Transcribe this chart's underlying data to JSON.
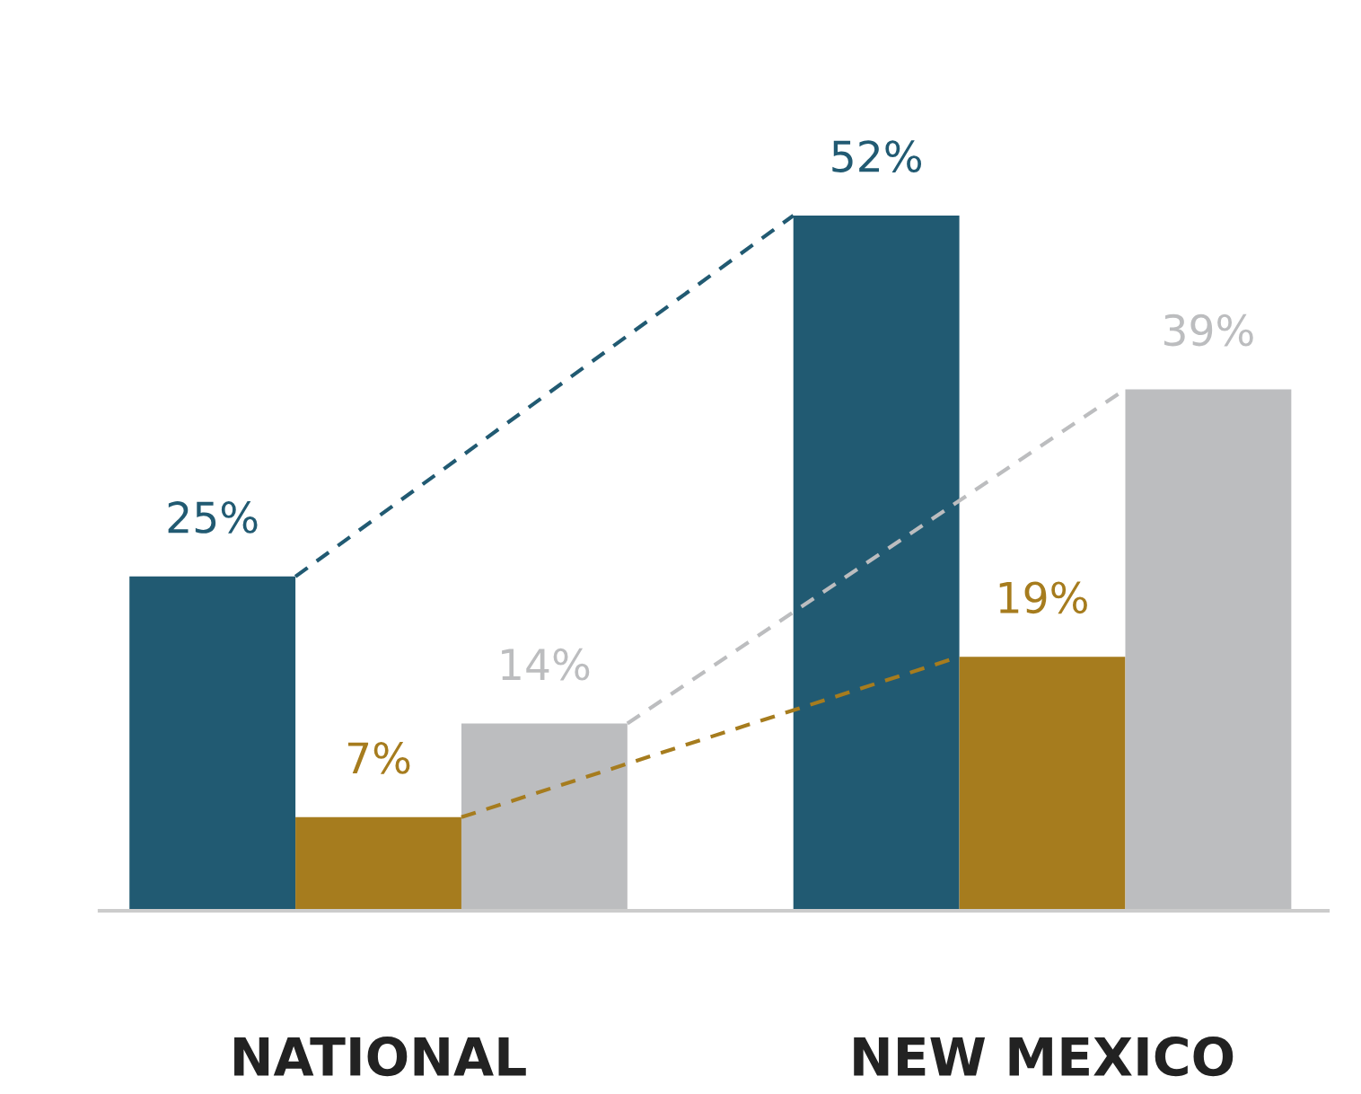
{
  "chart_data": {
    "type": "bar",
    "categories": [
      "NATIONAL",
      "NEW MEXICO"
    ],
    "series": [
      {
        "color": "#215a72",
        "values": [
          25,
          52
        ],
        "value_labels": [
          "25%",
          "52%"
        ],
        "line_style": "dashed"
      },
      {
        "color": "#a67c1e",
        "values": [
          7,
          19
        ],
        "value_labels": [
          "7%",
          "19%"
        ],
        "line_style": "dashed"
      },
      {
        "color": "#bcbdbf",
        "values": [
          14,
          39
        ],
        "value_labels": [
          "14%",
          "39%"
        ],
        "line_style": "dashed"
      }
    ]
  }
}
